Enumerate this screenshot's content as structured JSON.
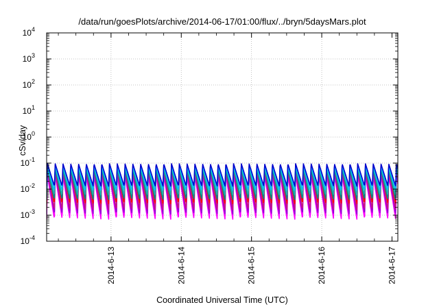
{
  "chart_data": {
    "type": "line",
    "title": "/data/run/goesPlots/archive/2014-06-17/01:00/flux/../bryn/5daysMars.plot",
    "xlabel": "Coordinated Universal Time (UTC)",
    "ylabel": "cSv/day",
    "yscale": "log",
    "ylim": [
      0.0001,
      10000
    ],
    "x_range": [
      "2014-06-12T02:00",
      "2014-06-17T02:00"
    ],
    "xtick_labels": [
      "2014-6-13",
      "2014-6-14",
      "2014-6-15",
      "2014-6-16",
      "2014-6-17"
    ],
    "xtick_values": [
      "2014-06-13T00:00",
      "2014-06-14T00:00",
      "2014-06-15T00:00",
      "2014-06-16T00:00",
      "2014-06-17T00:00"
    ],
    "ytick_values": [
      0.0001,
      0.001,
      0.01,
      0.1,
      1,
      10,
      100,
      1000,
      10000
    ],
    "ytick_exponents": [
      "-4",
      "-3",
      "-2",
      "-1",
      "0",
      "1",
      "2",
      "3",
      "4"
    ],
    "ytick_base": "10",
    "grid": true,
    "legend": "none",
    "pulse_period_hours": 2.65,
    "series": [
      {
        "color": "#ff00ff",
        "peak": 0.035,
        "trough": 0.0007
      },
      {
        "color": "#9400d3",
        "peak": 0.045,
        "trough": 0.0011
      },
      {
        "color": "#c71585",
        "peak": 0.055,
        "trough": 0.0016
      },
      {
        "color": "#ff0000",
        "peak": 0.085,
        "trough": 0.0028
      },
      {
        "color": "#008b8b",
        "peak": 0.06,
        "trough": 0.004
      },
      {
        "color": "#20b2aa",
        "peak": 0.07,
        "trough": 0.006
      },
      {
        "color": "#00bfff",
        "peak": 0.08,
        "trough": 0.009
      },
      {
        "color": "#0000cd",
        "peak": 0.095,
        "trough": 0.013
      }
    ]
  }
}
